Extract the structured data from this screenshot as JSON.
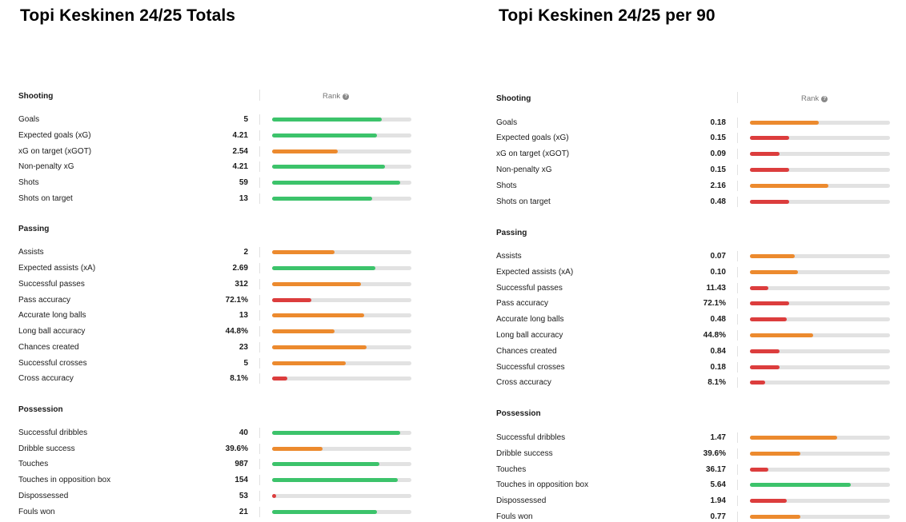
{
  "colors": {
    "high": "#3cc36b",
    "mid": "#ec8a2e",
    "low": "#dc3d3d",
    "track": "#e2e2e2"
  },
  "chart_data": [
    {
      "type": "bar",
      "title": "Topi Keskinen 24/25 Totals",
      "rank_label": "Rank",
      "sections": [
        {
          "title": "Shooting",
          "stats": [
            {
              "label": "Goals",
              "value": "5",
              "rank": 0.79,
              "tier": "high"
            },
            {
              "label": "Expected goals (xG)",
              "value": "4.21",
              "rank": 0.75,
              "tier": "high"
            },
            {
              "label": "xG on target (xGOT)",
              "value": "2.54",
              "rank": 0.47,
              "tier": "mid"
            },
            {
              "label": "Non-penalty xG",
              "value": "4.21",
              "rank": 0.81,
              "tier": "high"
            },
            {
              "label": "Shots",
              "value": "59",
              "rank": 0.92,
              "tier": "high"
            },
            {
              "label": "Shots on target",
              "value": "13",
              "rank": 0.72,
              "tier": "high"
            }
          ]
        },
        {
          "title": "Passing",
          "stats": [
            {
              "label": "Assists",
              "value": "2",
              "rank": 0.45,
              "tier": "mid"
            },
            {
              "label": "Expected assists (xA)",
              "value": "2.69",
              "rank": 0.74,
              "tier": "high"
            },
            {
              "label": "Successful passes",
              "value": "312",
              "rank": 0.64,
              "tier": "mid"
            },
            {
              "label": "Pass accuracy",
              "value": "72.1%",
              "rank": 0.28,
              "tier": "low"
            },
            {
              "label": "Accurate long balls",
              "value": "13",
              "rank": 0.66,
              "tier": "mid"
            },
            {
              "label": "Long ball accuracy",
              "value": "44.8%",
              "rank": 0.45,
              "tier": "mid"
            },
            {
              "label": "Chances created",
              "value": "23",
              "rank": 0.68,
              "tier": "mid"
            },
            {
              "label": "Successful crosses",
              "value": "5",
              "rank": 0.53,
              "tier": "mid"
            },
            {
              "label": "Cross accuracy",
              "value": "8.1%",
              "rank": 0.11,
              "tier": "low"
            }
          ]
        },
        {
          "title": "Possession",
          "stats": [
            {
              "label": "Successful dribbles",
              "value": "40",
              "rank": 0.92,
              "tier": "high"
            },
            {
              "label": "Dribble success",
              "value": "39.6%",
              "rank": 0.36,
              "tier": "mid"
            },
            {
              "label": "Touches",
              "value": "987",
              "rank": 0.77,
              "tier": "high"
            },
            {
              "label": "Touches in opposition box",
              "value": "154",
              "rank": 0.9,
              "tier": "high"
            },
            {
              "label": "Dispossessed",
              "value": "53",
              "rank": 0.03,
              "tier": "low"
            },
            {
              "label": "Fouls won",
              "value": "21",
              "rank": 0.75,
              "tier": "high"
            }
          ]
        }
      ]
    },
    {
      "type": "bar",
      "title": "Topi Keskinen 24/25 per 90",
      "rank_label": "Rank",
      "sections": [
        {
          "title": "Shooting",
          "stats": [
            {
              "label": "Goals",
              "value": "0.18",
              "rank": 0.49,
              "tier": "mid"
            },
            {
              "label": "Expected goals (xG)",
              "value": "0.15",
              "rank": 0.28,
              "tier": "low"
            },
            {
              "label": "xG on target (xGOT)",
              "value": "0.09",
              "rank": 0.21,
              "tier": "low"
            },
            {
              "label": "Non-penalty xG",
              "value": "0.15",
              "rank": 0.28,
              "tier": "low"
            },
            {
              "label": "Shots",
              "value": "2.16",
              "rank": 0.56,
              "tier": "mid"
            },
            {
              "label": "Shots on target",
              "value": "0.48",
              "rank": 0.28,
              "tier": "low"
            }
          ]
        },
        {
          "title": "Passing",
          "stats": [
            {
              "label": "Assists",
              "value": "0.07",
              "rank": 0.32,
              "tier": "mid"
            },
            {
              "label": "Expected assists (xA)",
              "value": "0.10",
              "rank": 0.34,
              "tier": "mid"
            },
            {
              "label": "Successful passes",
              "value": "11.43",
              "rank": 0.13,
              "tier": "low"
            },
            {
              "label": "Pass accuracy",
              "value": "72.1%",
              "rank": 0.28,
              "tier": "low"
            },
            {
              "label": "Accurate long balls",
              "value": "0.48",
              "rank": 0.26,
              "tier": "low"
            },
            {
              "label": "Long ball accuracy",
              "value": "44.8%",
              "rank": 0.45,
              "tier": "mid"
            },
            {
              "label": "Chances created",
              "value": "0.84",
              "rank": 0.21,
              "tier": "low"
            },
            {
              "label": "Successful crosses",
              "value": "0.18",
              "rank": 0.21,
              "tier": "low"
            },
            {
              "label": "Cross accuracy",
              "value": "8.1%",
              "rank": 0.11,
              "tier": "low"
            }
          ]
        },
        {
          "title": "Possession",
          "stats": [
            {
              "label": "Successful dribbles",
              "value": "1.47",
              "rank": 0.62,
              "tier": "mid"
            },
            {
              "label": "Dribble success",
              "value": "39.6%",
              "rank": 0.36,
              "tier": "mid"
            },
            {
              "label": "Touches",
              "value": "36.17",
              "rank": 0.13,
              "tier": "low"
            },
            {
              "label": "Touches in opposition box",
              "value": "5.64",
              "rank": 0.72,
              "tier": "high"
            },
            {
              "label": "Dispossessed",
              "value": "1.94",
              "rank": 0.26,
              "tier": "low"
            },
            {
              "label": "Fouls won",
              "value": "0.77",
              "rank": 0.36,
              "tier": "mid"
            }
          ]
        }
      ]
    }
  ]
}
